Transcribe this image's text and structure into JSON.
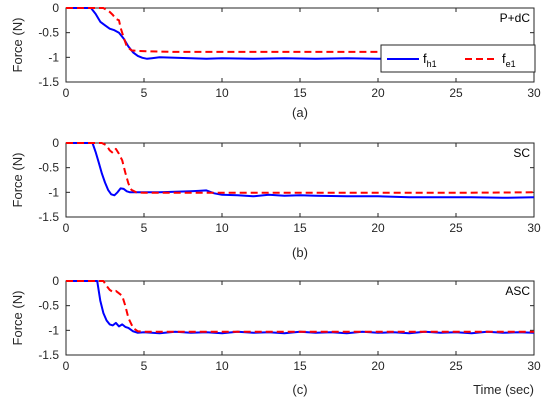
{
  "chart_data": [
    {
      "type": "line",
      "panel_label": "P+dC",
      "caption": "(a)",
      "ylabel": "Force (N)",
      "xlabel": "",
      "xlim": [
        0,
        30
      ],
      "ylim": [
        -1.5,
        0
      ],
      "xticks": [
        0,
        5,
        10,
        15,
        20,
        25,
        30
      ],
      "yticks": [
        0,
        -0.5,
        -1,
        -1.5
      ],
      "ytick_labels": [
        "0",
        "-0.5",
        "-1",
        "-1.5"
      ],
      "grid": false,
      "legend": {
        "placement": "right",
        "entries": [
          {
            "main": "f",
            "sub": "h1"
          },
          {
            "main": "f",
            "sub": "e1"
          }
        ]
      },
      "series": [
        {
          "x": [
            0,
            1.6,
            1.9,
            2.2,
            2.5,
            2.8,
            3.1,
            3.4,
            3.7,
            4.0,
            4.3,
            4.6,
            4.9,
            5.2,
            5.5,
            6,
            7,
            8,
            9,
            10,
            12,
            14,
            16,
            18,
            20,
            22,
            24,
            26,
            28,
            29.5,
            30
          ],
          "y": [
            0,
            0,
            -0.12,
            -0.28,
            -0.35,
            -0.42,
            -0.45,
            -0.5,
            -0.62,
            -0.78,
            -0.9,
            -0.97,
            -1.01,
            -1.03,
            -1.02,
            -1.0,
            -1.01,
            -1.02,
            -1.03,
            -1.02,
            -1.03,
            -1.02,
            -1.03,
            -1.02,
            -1.03,
            -1.02,
            -1.03,
            -1.03,
            -1.02,
            -1.03,
            -1.0
          ]
        },
        {
          "x": [
            0,
            2.4,
            2.8,
            3.0,
            3.2,
            3.4,
            3.5,
            3.7,
            3.9,
            4.2,
            4.6,
            5.5,
            7,
            10,
            15,
            20,
            25,
            30
          ],
          "y": [
            0,
            0,
            -0.08,
            -0.14,
            -0.22,
            -0.25,
            -0.4,
            -0.6,
            -0.78,
            -0.86,
            -0.87,
            -0.88,
            -0.89,
            -0.89,
            -0.89,
            -0.89,
            -0.89,
            -0.88
          ]
        }
      ]
    },
    {
      "type": "line",
      "panel_label": "SC",
      "caption": "(b)",
      "ylabel": "Force (N)",
      "xlabel": "",
      "xlim": [
        0,
        30
      ],
      "ylim": [
        -1.5,
        0
      ],
      "xticks": [
        0,
        5,
        10,
        15,
        20,
        25,
        30
      ],
      "yticks": [
        0,
        -0.5,
        -1,
        -1.5
      ],
      "ytick_labels": [
        "0",
        "-0.5",
        "-1",
        "-1.5"
      ],
      "grid": false,
      "series": [
        {
          "x": [
            0,
            1.7,
            1.9,
            2.1,
            2.3,
            2.5,
            2.7,
            2.9,
            3.1,
            3.3,
            3.5,
            3.7,
            3.9,
            4.1,
            4.4,
            5,
            6,
            7,
            8,
            8.5,
            9,
            9.5,
            10,
            11,
            12,
            13,
            14,
            15,
            16,
            18,
            20,
            22,
            24,
            26,
            28,
            30
          ],
          "y": [
            0,
            0,
            -0.18,
            -0.4,
            -0.62,
            -0.8,
            -0.95,
            -1.04,
            -1.06,
            -1.0,
            -0.92,
            -0.93,
            -0.98,
            -1.0,
            -1.0,
            -1.0,
            -1.0,
            -0.99,
            -0.98,
            -0.97,
            -0.96,
            -1.02,
            -1.05,
            -1.06,
            -1.08,
            -1.05,
            -1.07,
            -1.06,
            -1.07,
            -1.08,
            -1.08,
            -1.1,
            -1.1,
            -1.1,
            -1.11,
            -1.1
          ]
        },
        {
          "x": [
            0,
            2.3,
            2.6,
            2.8,
            3.0,
            3.2,
            3.4,
            3.6,
            3.8,
            4.0,
            4.2,
            4.5,
            5,
            6,
            8,
            10,
            12,
            15,
            20,
            25,
            30
          ],
          "y": [
            0,
            0,
            -0.05,
            -0.15,
            -0.2,
            -0.12,
            -0.22,
            -0.35,
            -0.6,
            -0.82,
            -0.95,
            -1.0,
            -1.01,
            -1.01,
            -1.01,
            -1.01,
            -1.01,
            -1.01,
            -1.01,
            -1.01,
            -1.0
          ]
        }
      ]
    },
    {
      "type": "line",
      "panel_label": "ASC",
      "caption": "(c)",
      "ylabel": "Force (N)",
      "xlabel": "Time (sec)",
      "xlim": [
        0,
        30
      ],
      "ylim": [
        -1.5,
        0
      ],
      "xticks": [
        0,
        5,
        10,
        15,
        20,
        25,
        30
      ],
      "yticks": [
        0,
        -0.5,
        -1,
        -1.5
      ],
      "ytick_labels": [
        "0",
        "-0.5",
        "-1",
        "-1.5"
      ],
      "grid": false,
      "series": [
        {
          "x": [
            0,
            2.0,
            2.2,
            2.4,
            2.6,
            2.8,
            3.0,
            3.2,
            3.4,
            3.6,
            3.8,
            4.0,
            4.3,
            4.6,
            5,
            6,
            7,
            8,
            9,
            10,
            11,
            12,
            13,
            14,
            15,
            16,
            17,
            18,
            19,
            20,
            21,
            22,
            23,
            24,
            25,
            26,
            27,
            28,
            29,
            30
          ],
          "y": [
            0,
            0,
            -0.4,
            -0.65,
            -0.8,
            -0.88,
            -0.9,
            -0.85,
            -0.92,
            -0.88,
            -0.93,
            -0.95,
            -1.02,
            -1.05,
            -1.04,
            -1.06,
            -1.03,
            -1.05,
            -1.04,
            -1.06,
            -1.03,
            -1.05,
            -1.04,
            -1.06,
            -1.03,
            -1.05,
            -1.04,
            -1.06,
            -1.03,
            -1.05,
            -1.04,
            -1.06,
            -1.03,
            -1.05,
            -1.04,
            -1.06,
            -1.03,
            -1.05,
            -1.04,
            -1.05
          ]
        },
        {
          "x": [
            0,
            2.4,
            2.6,
            2.8,
            3.0,
            3.2,
            3.4,
            3.6,
            3.8,
            4.0,
            4.3,
            4.6,
            5,
            7,
            10,
            15,
            20,
            25,
            30
          ],
          "y": [
            0,
            0,
            -0.1,
            -0.18,
            -0.22,
            -0.2,
            -0.25,
            -0.3,
            -0.5,
            -0.75,
            -0.95,
            -1.02,
            -1.03,
            -1.03,
            -1.03,
            -1.03,
            -1.03,
            -1.03,
            -1.03
          ]
        }
      ]
    }
  ],
  "colors": {
    "series_solid": "#0000ff",
    "series_dashed": "#ff0000",
    "axis": "#262626"
  }
}
